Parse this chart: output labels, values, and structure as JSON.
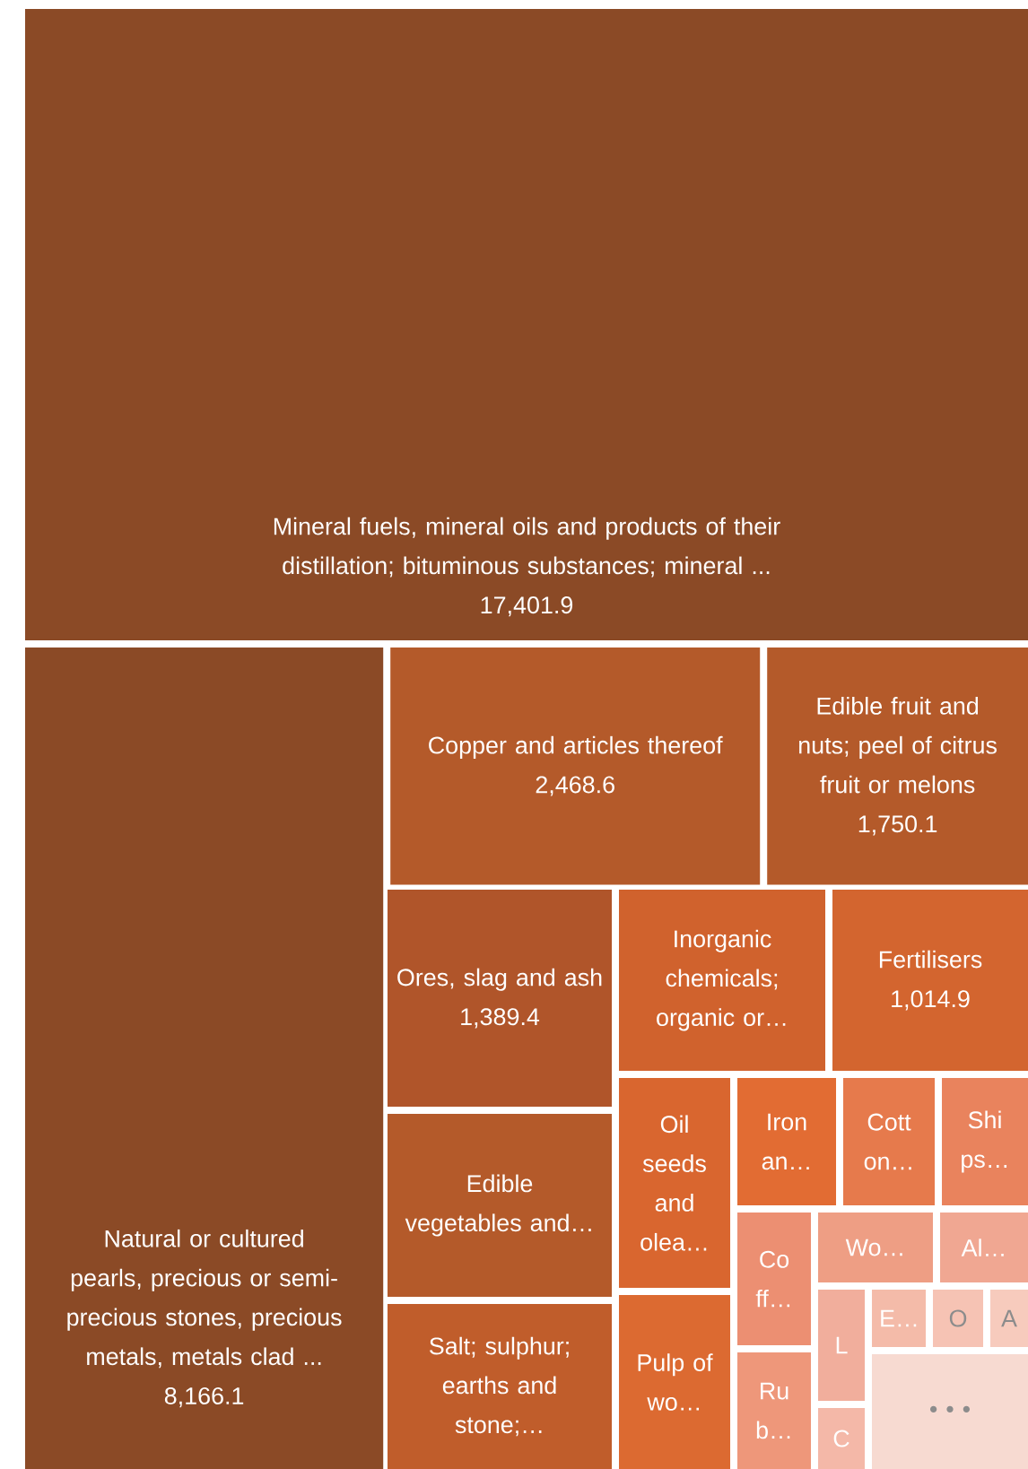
{
  "chart_data": {
    "type": "other",
    "categories": [
      "Mineral fuels, mineral oils and products of their distillation; bituminous substances; mineral ...",
      "Natural or cultured pearls, precious or semi-precious stones, precious metals, metals clad ...",
      "Copper and articles thereof",
      "Edible fruit and nuts; peel of citrus fruit or melons",
      "Ores, slag and ash",
      "Inorganic chemicals; organic or…",
      "Fertilisers",
      "Edible vegetables and…",
      "Salt; sulphur; earths and stone;…",
      "Oil seeds and olea…",
      "Pulp of wo…",
      "Iron an…",
      "Cott on…",
      "Shi ps…",
      "Co ff…",
      "Ru b…",
      "Wo…",
      "Al…",
      "L",
      "C",
      "E…",
      "O",
      "A",
      "• • •"
    ],
    "values": [
      17401.9,
      8166.1,
      2468.6,
      1750.1,
      1389.4,
      null,
      1014.9,
      null,
      null,
      null,
      null,
      null,
      null,
      null,
      null,
      null,
      null,
      null,
      null,
      null,
      null,
      null,
      null,
      null
    ],
    "value_labels": [
      "17,401.9",
      "8,166.1",
      "2,468.6",
      "1,750.1",
      "1,389.4",
      null,
      "1,014.9",
      null,
      null,
      null,
      null,
      null,
      null,
      null,
      null,
      null,
      null,
      null,
      null,
      null,
      null,
      null,
      null,
      null
    ],
    "colors": [
      "#8b4a26",
      "#8b4a26",
      "#b45a2a",
      "#b45a2a",
      "#b0552a",
      "#d0622d",
      "#d3652f",
      "#b45a2a",
      "#c05d2b",
      "#d9662f",
      "#dc6a31",
      "#e26c33",
      "#e67a4c",
      "#e9835d",
      "#ec8f72",
      "#ee977a",
      "#ee9e84",
      "#f0a792",
      "#f1ae9c",
      "#f4b8a8",
      "#f4bba9",
      "#f6c3b4",
      "#f7cbbd",
      "#f7dad1"
    ]
  }
}
